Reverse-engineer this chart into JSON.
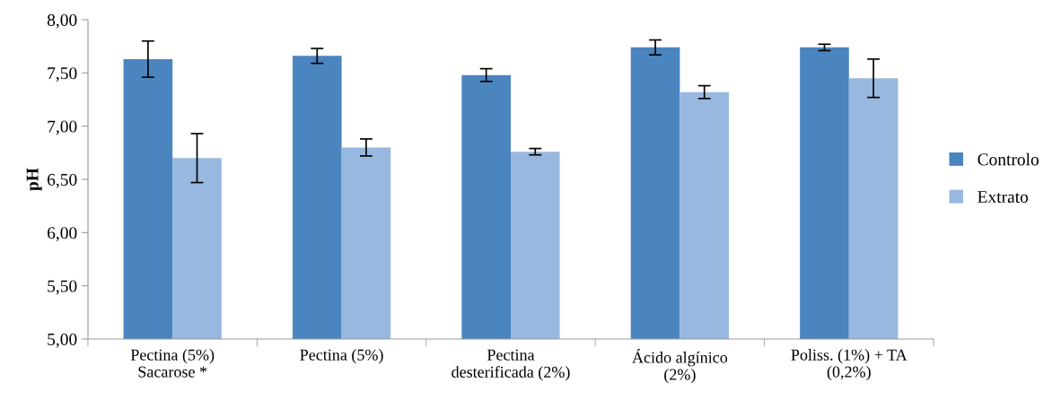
{
  "chart_data": {
    "type": "bar",
    "ylabel": "pH",
    "categories": [
      "Pectina (5%)\nSacarose *",
      "Pectina (5%)",
      "Pectina\ndesterificada (2%)",
      "Ácido algínico\n(2%)",
      "Poliss. (1%) + TA\n(0,2%)"
    ],
    "series": [
      {
        "name": "Controlo",
        "color": "#4a85bf",
        "values": [
          7.63,
          7.66,
          7.48,
          7.74,
          7.74
        ],
        "errors": [
          0.17,
          0.07,
          0.06,
          0.07,
          0.03
        ]
      },
      {
        "name": "Extrato",
        "color": "#98b8e0",
        "values": [
          6.7,
          6.8,
          6.76,
          7.32,
          7.45
        ],
        "errors": [
          0.23,
          0.08,
          0.03,
          0.06,
          0.18
        ]
      }
    ],
    "ylim": [
      5,
      8
    ],
    "yticks": [
      {
        "value": 5,
        "label": "5,00"
      },
      {
        "value": 5.5,
        "label": "5,50"
      },
      {
        "value": 6,
        "label": "6,00"
      },
      {
        "value": 6.5,
        "label": "6,50"
      },
      {
        "value": 7,
        "label": "7,00"
      },
      {
        "value": 7.5,
        "label": "7,50"
      },
      {
        "value": 8,
        "label": "8,00"
      }
    ],
    "grid": false,
    "legend": "right"
  }
}
